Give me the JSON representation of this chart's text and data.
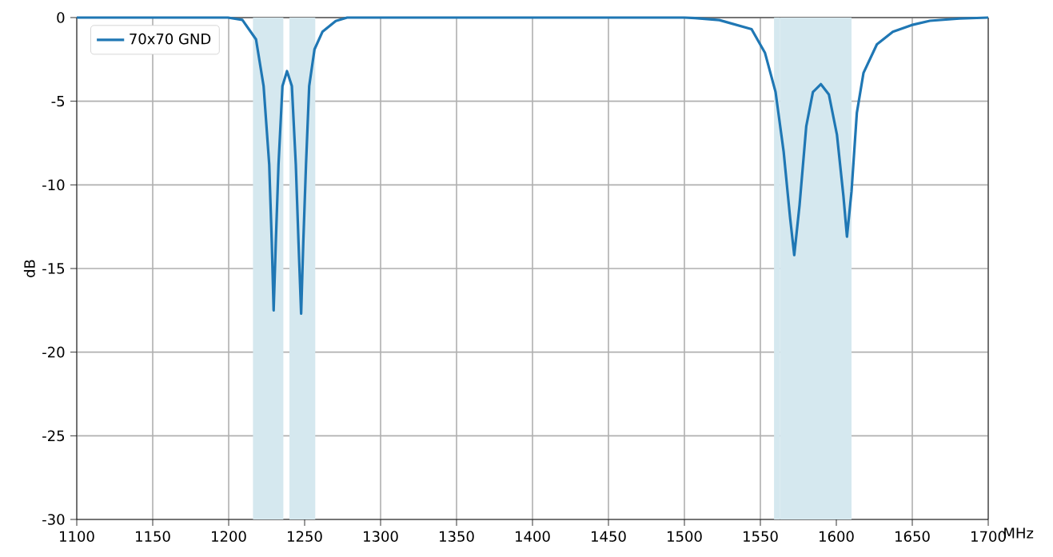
{
  "chart_data": {
    "type": "line",
    "xlabel": "MHz",
    "ylabel": "dB",
    "xlim": [
      1100,
      1700
    ],
    "ylim": [
      -30,
      0
    ],
    "xticks": [
      1100,
      1150,
      1200,
      1250,
      1300,
      1350,
      1400,
      1450,
      1500,
      1550,
      1600,
      1650,
      1700
    ],
    "yticks": [
      -30,
      -25,
      -20,
      -15,
      -10,
      -5,
      0
    ],
    "grid": true,
    "legend": "top left",
    "line_style": "solid",
    "marker": "none",
    "bands": [
      {
        "axis": "x",
        "from": 1216,
        "to": 1236,
        "color": "#d5e8ef"
      },
      {
        "axis": "x",
        "from": 1240,
        "to": 1257,
        "color": "#d5e8ef"
      },
      {
        "axis": "x",
        "from": 1559,
        "to": 1563,
        "color": "#d5e8ef"
      },
      {
        "axis": "x",
        "from": 1563,
        "to": 1610,
        "color": "#d5e8ef"
      }
    ],
    "series": [
      {
        "name": "70x70 GND",
        "color": "#1f77b4",
        "x": [
          1100,
          1199.5,
          1209,
          1218,
          1223,
          1226.7,
          1228.4,
          1229.6,
          1231,
          1232.8,
          1235.4,
          1238.4,
          1241.6,
          1244.2,
          1246,
          1247.7,
          1249.1,
          1250.9,
          1253,
          1256.5,
          1261.7,
          1270.5,
          1278,
          1500,
          1507,
          1523,
          1544.2,
          1553,
          1560,
          1565.3,
          1569.6,
          1572.3,
          1575.8,
          1580.2,
          1584.6,
          1589.8,
          1595.1,
          1600.4,
          1604.7,
          1607,
          1610,
          1613.5,
          1617.9,
          1626.7,
          1637.2,
          1649.5,
          1661.6,
          1681,
          1700
        ],
        "values": [
          0,
          0,
          -0.14,
          -1.3,
          -4.1,
          -8.8,
          -13.5,
          -17.5,
          -13.5,
          -8.8,
          -4.1,
          -3.2,
          -4.1,
          -8.8,
          -13.5,
          -17.7,
          -13.5,
          -8.8,
          -4.1,
          -1.9,
          -0.85,
          -0.2,
          0,
          0,
          -0.03,
          -0.15,
          -0.69,
          -2.1,
          -4.45,
          -8.0,
          -12.0,
          -14.2,
          -11.2,
          -6.5,
          -4.45,
          -3.98,
          -4.6,
          -7.0,
          -10.7,
          -13.1,
          -10.4,
          -5.7,
          -3.3,
          -1.6,
          -0.85,
          -0.45,
          -0.19,
          -0.06,
          0
        ]
      }
    ]
  }
}
